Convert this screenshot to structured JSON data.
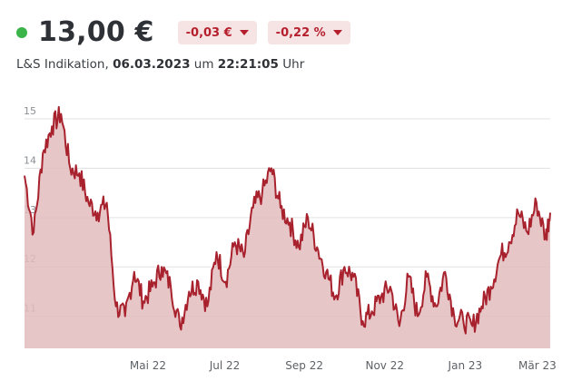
{
  "header": {
    "price": "13,00 €",
    "change_abs": "-0,03 €",
    "change_pct": "-0,22 %",
    "status_color": "#3bb44a",
    "down_icon": "caret-down-icon"
  },
  "quote": {
    "source": "L&S Indikation,",
    "date": "06.03.2023",
    "um": "um",
    "time": "22:21:05",
    "uhr": "Uhr"
  },
  "chart_data": {
    "type": "area",
    "title": "",
    "xlabel": "",
    "ylabel": "",
    "ylim": [
      10.35,
      15.35
    ],
    "y_ticks": [
      11,
      12,
      13,
      14,
      15
    ],
    "y_tick_labels": [
      "11",
      "12",
      "13",
      "14",
      "15"
    ],
    "x_ticks": [
      "Mai 22",
      "Jul 22",
      "Sep 22",
      "Nov 22",
      "Jan 23",
      "Mär 23"
    ],
    "x_tick_values": [
      13.5,
      21.9,
      30.6,
      39.4,
      48.2,
      56.1
    ],
    "x_range": [
      0,
      57.5
    ],
    "grid": true,
    "line_color": "#a8222e",
    "fill_color": "#e3bcbe",
    "series": [
      {
        "x": [
          0,
          1,
          2,
          3,
          4,
          5,
          6,
          7,
          8,
          9,
          10,
          11,
          12,
          13,
          14,
          15,
          16,
          17,
          18,
          19,
          20,
          21,
          22,
          23,
          24,
          25,
          26,
          27,
          28,
          29,
          30,
          31,
          32,
          33,
          34,
          35,
          36,
          37,
          38,
          39,
          40,
          41,
          42,
          43,
          44,
          45,
          46,
          47,
          48,
          49,
          50,
          51,
          52,
          53,
          54,
          55,
          56,
          57,
          57.5
        ],
        "values": [
          13.85,
          12.7,
          14.3,
          14.85,
          15.1,
          14.0,
          13.9,
          13.3,
          13.1,
          13.3,
          11.2,
          11.0,
          11.9,
          11.3,
          11.6,
          12.0,
          11.6,
          10.8,
          11.5,
          11.7,
          11.2,
          12.3,
          11.7,
          12.5,
          12.2,
          13.2,
          13.5,
          14.0,
          13.2,
          12.9,
          12.4,
          13.0,
          12.4,
          11.9,
          11.4,
          12.0,
          11.8,
          10.9,
          11.1,
          11.4,
          11.6,
          10.8,
          11.8,
          11.0,
          11.8,
          11.2,
          11.9,
          11.0,
          10.9,
          10.8,
          11.2,
          11.6,
          12.2,
          12.5,
          13.1,
          12.7,
          13.3,
          12.6,
          13.1
        ]
      }
    ]
  }
}
